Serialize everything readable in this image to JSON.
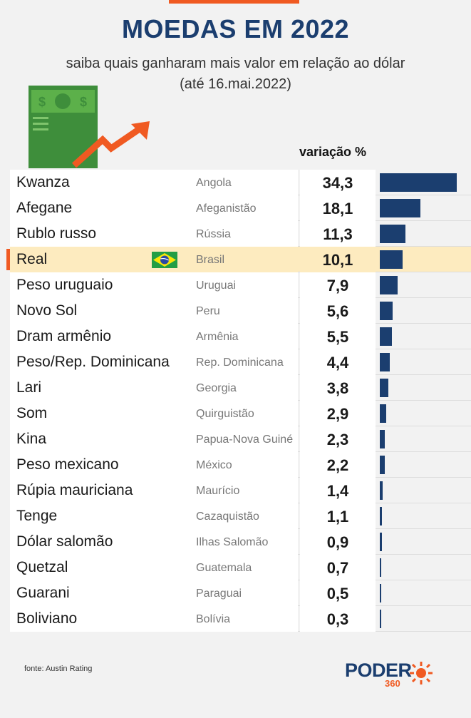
{
  "header": {
    "title": "MOEDAS EM 2022",
    "subtitle_line1": "saiba quais ganharam mais valor em relação ao dólar",
    "subtitle_line2": "(até 16.mai.2022)"
  },
  "column_header": "variação %",
  "colors": {
    "title": "#1b3e6f",
    "bar": "#1b3e6f",
    "accent": "#f05a22",
    "highlight_row": "#fdebbf"
  },
  "highlight_currency": "Real",
  "chart_data": {
    "type": "bar",
    "orientation": "horizontal",
    "categories": [
      "Kwanza",
      "Afegane",
      "Rublo russo",
      "Real",
      "Peso uruguaio",
      "Novo Sol",
      "Dram armênio",
      "Peso/Rep. Dominicana",
      "Lari",
      "Som",
      "Kina",
      "Peso mexicano",
      "Rúpia mauriciana",
      "Tenge",
      "Dólar salomão",
      "Quetzal",
      "Guarani",
      "Boliviano"
    ],
    "countries": [
      "Angola",
      "Afeganistão",
      "Rússia",
      "Brasil",
      "Uruguai",
      "Peru",
      "Armênia",
      "Rep. Dominicana",
      "Georgia",
      "Quirguistão",
      "Papua-Nova Guiné",
      "México",
      "Maurício",
      "Cazaquistão",
      "Ilhas Salomão",
      "Guatemala",
      "Paraguai",
      "Bolívia"
    ],
    "values": [
      34.3,
      18.1,
      11.3,
      10.1,
      7.9,
      5.6,
      5.5,
      4.4,
      3.8,
      2.9,
      2.3,
      2.2,
      1.4,
      1.1,
      0.9,
      0.7,
      0.5,
      0.3
    ],
    "value_labels": [
      "34,3",
      "18,1",
      "11,3",
      "10,1",
      "7,9",
      "5,6",
      "5,5",
      "4,4",
      "3,8",
      "2,9",
      "2,3",
      "2,2",
      "1,4",
      "1,1",
      "0,9",
      "0,7",
      "0,5",
      "0,3"
    ],
    "xlim": [
      0,
      34.3
    ]
  },
  "footer": {
    "source": "fonte: Austin Rating",
    "logo_main": "PODER",
    "logo_sub": "360"
  }
}
